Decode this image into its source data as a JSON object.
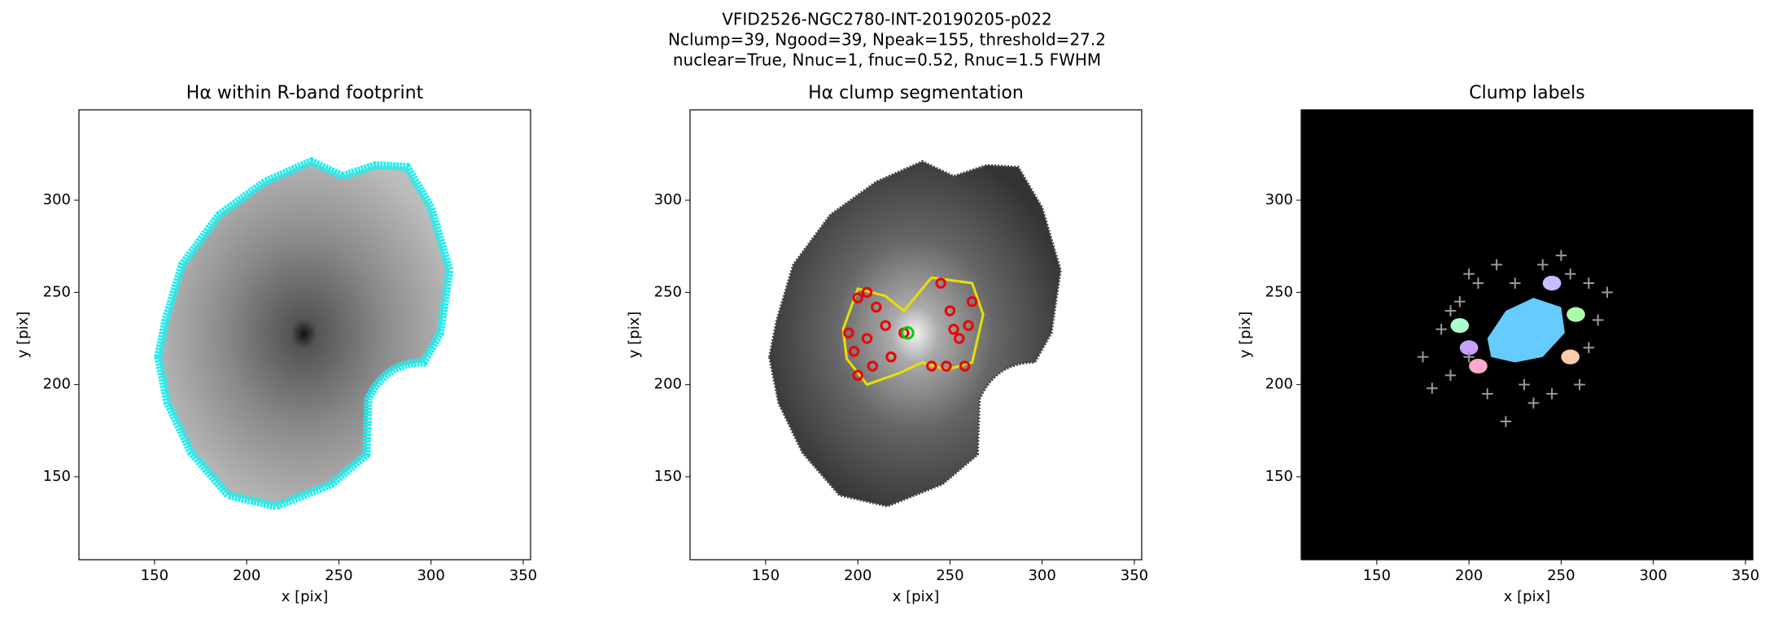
{
  "figure_title": [
    "VFID2526-NGC2780-INT-20190205-p022",
    "Nclump=39, Ngood=39, Npeak=155, threshold=27.2",
    "nuclear=True, Nnuc=1, fnuc=0.52, Rnuc=1.5 FWHM"
  ],
  "chart_data": [
    {
      "type": "image",
      "title": "Hα within R-band footprint",
      "xlabel": "x [pix]",
      "ylabel": "y [pix]",
      "xlim": [
        109,
        354
      ],
      "ylim": [
        105,
        349
      ],
      "xticks": [
        150,
        200,
        250,
        300,
        350
      ],
      "yticks": [
        150,
        200,
        250,
        300
      ]
    },
    {
      "type": "image",
      "title": "Hα clump segmentation",
      "xlabel": "x [pix]",
      "ylabel": "y [pix]",
      "xlim": [
        109,
        354
      ],
      "ylim": [
        105,
        349
      ],
      "xticks": [
        150,
        200,
        250,
        300,
        350
      ],
      "yticks": [
        150,
        200,
        250,
        300
      ]
    },
    {
      "type": "image",
      "title": "Clump labels",
      "xlabel": "x [pix]",
      "ylabel": "y [pix]",
      "xlim": [
        109,
        354
      ],
      "ylim": [
        105,
        349
      ],
      "xticks": [
        150,
        200,
        250,
        300,
        350
      ],
      "yticks": [
        150,
        200,
        250,
        300
      ]
    }
  ]
}
